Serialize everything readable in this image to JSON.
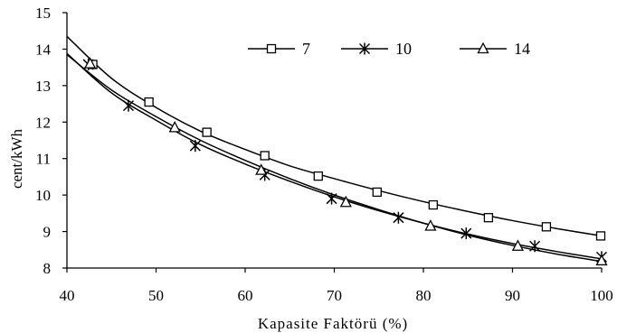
{
  "chart_data": {
    "type": "line",
    "title": "",
    "xlabel": "Kapasite Faktörü (%)",
    "ylabel": "cent/kWh",
    "xlim": [
      40,
      100
    ],
    "ylim": [
      8,
      15
    ],
    "xticks": [
      40,
      50,
      60,
      70,
      80,
      90,
      100
    ],
    "yticks": [
      8,
      9,
      10,
      11,
      12,
      13,
      14,
      15
    ],
    "grid": false,
    "legend_position": "top-right",
    "line_color": "#000000",
    "series": [
      {
        "name": "7",
        "marker": "square",
        "curve": [
          [
            40,
            14.35
          ],
          [
            45,
            13.2
          ],
          [
            50,
            12.4
          ],
          [
            55,
            11.75
          ],
          [
            60,
            11.25
          ],
          [
            65,
            10.8
          ],
          [
            70,
            10.45
          ],
          [
            75,
            10.12
          ],
          [
            80,
            9.82
          ],
          [
            85,
            9.55
          ],
          [
            90,
            9.3
          ],
          [
            95,
            9.08
          ],
          [
            100,
            8.88
          ]
        ],
        "markers": [
          [
            42.9,
            13.58
          ],
          [
            49.2,
            12.55
          ],
          [
            55.7,
            11.72
          ],
          [
            62.2,
            11.08
          ],
          [
            68.2,
            10.52
          ],
          [
            74.8,
            10.08
          ],
          [
            81.1,
            9.73
          ],
          [
            87.3,
            9.38
          ],
          [
            93.8,
            9.13
          ],
          [
            99.9,
            8.88
          ]
        ]
      },
      {
        "name": "10",
        "marker": "asterisk",
        "curve": [
          [
            40,
            13.88
          ],
          [
            45,
            12.8
          ],
          [
            50,
            12.05
          ],
          [
            55,
            11.38
          ],
          [
            60,
            10.85
          ],
          [
            65,
            10.38
          ],
          [
            70,
            9.95
          ],
          [
            75,
            9.57
          ],
          [
            80,
            9.23
          ],
          [
            85,
            8.93
          ],
          [
            90,
            8.67
          ],
          [
            95,
            8.45
          ],
          [
            100,
            8.25
          ]
        ],
        "markers": [
          [
            42.4,
            13.58
          ],
          [
            46.9,
            12.45
          ],
          [
            54.4,
            11.35
          ],
          [
            62.2,
            10.55
          ],
          [
            69.7,
            9.9
          ],
          [
            77.2,
            9.38
          ],
          [
            84.8,
            8.95
          ],
          [
            92.5,
            8.6
          ],
          [
            100,
            8.3
          ]
        ]
      },
      {
        "name": "14",
        "marker": "triangle",
        "curve": [
          [
            40,
            13.85
          ],
          [
            45,
            12.88
          ],
          [
            50,
            12.15
          ],
          [
            55,
            11.5
          ],
          [
            60,
            10.95
          ],
          [
            65,
            10.45
          ],
          [
            70,
            10.0
          ],
          [
            75,
            9.6
          ],
          [
            80,
            9.23
          ],
          [
            85,
            8.9
          ],
          [
            90,
            8.62
          ],
          [
            95,
            8.38
          ],
          [
            100,
            8.18
          ]
        ],
        "markers": [
          [
            42.6,
            13.6
          ],
          [
            52.1,
            11.85
          ],
          [
            61.8,
            10.68
          ],
          [
            71.3,
            9.8
          ],
          [
            80.8,
            9.15
          ],
          [
            90.6,
            8.6
          ],
          [
            100,
            8.2
          ]
        ]
      }
    ]
  }
}
